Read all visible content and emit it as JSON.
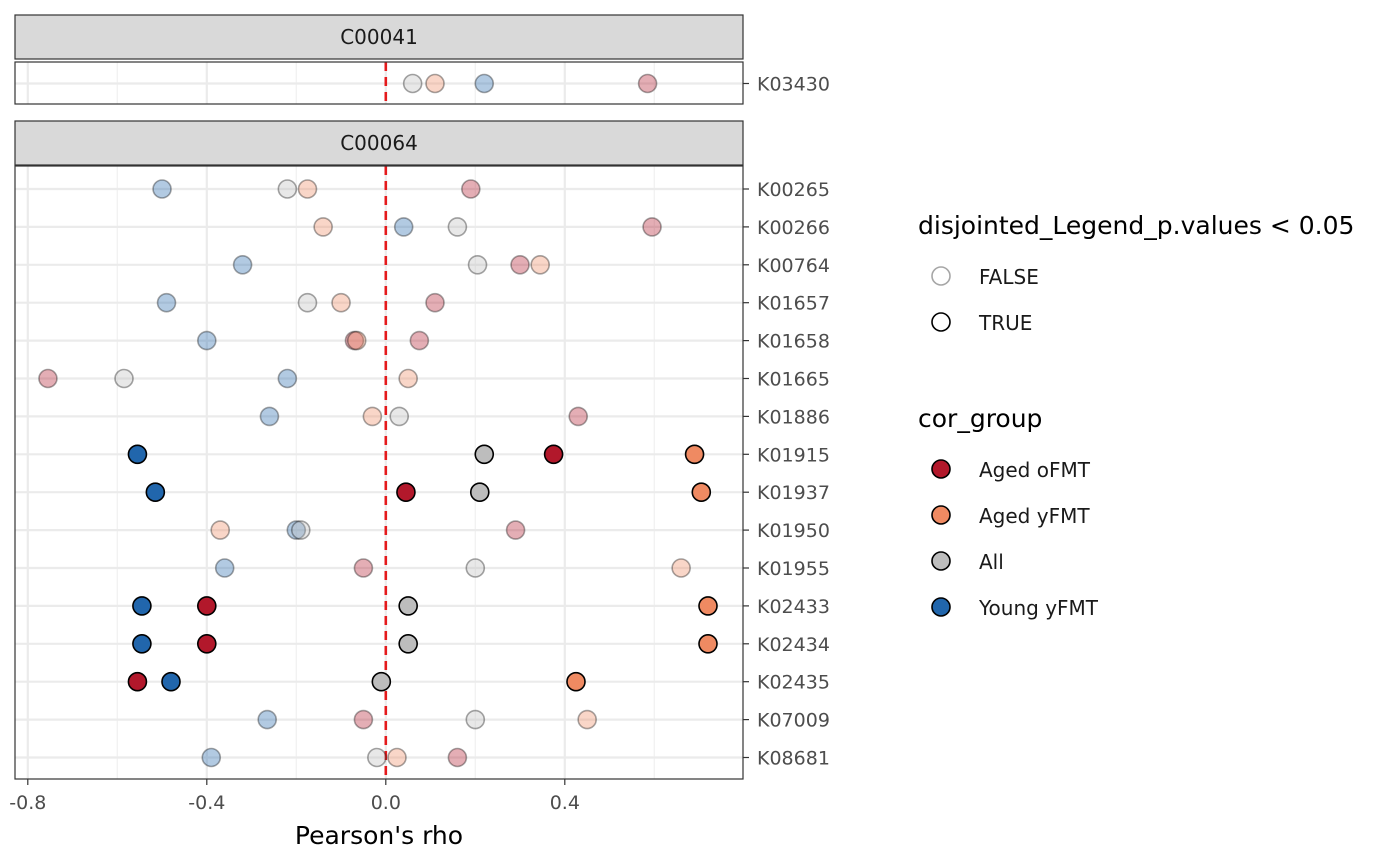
{
  "chart_data": {
    "type": "scatter",
    "xlabel": "Pearson's rho",
    "xlim": [
      -0.825,
      0.8
    ],
    "x_ticks": [
      -0.8,
      -0.4,
      0.0,
      0.4
    ],
    "x_tick_labels": [
      "-0.8",
      "-0.4",
      "0.0",
      "0.4"
    ],
    "reference_line": {
      "x": 0,
      "color": "#e41a1c",
      "style": "dashed"
    },
    "grid": true,
    "legend_position": "right",
    "colors": {
      "Aged oFMT": "#b2182b",
      "Aged yFMT": "#ef8a62",
      "All": "#bdbdbd",
      "Young yFMT": "#2166ac"
    },
    "legends": [
      {
        "title": "disjointed_Legend_p.values < 0.05",
        "entries": [
          {
            "label": "FALSE",
            "value": false
          },
          {
            "label": "TRUE",
            "value": true
          }
        ]
      },
      {
        "title": "cor_group",
        "entries": [
          {
            "label": "Aged oFMT",
            "color": "#b2182b"
          },
          {
            "label": "Aged yFMT",
            "color": "#ef8a62"
          },
          {
            "label": "All",
            "color": "#bdbdbd"
          },
          {
            "label": "Young yFMT",
            "color": "#2166ac"
          }
        ]
      }
    ],
    "panels": [
      {
        "facet": "C00041",
        "rows": [
          "K03430"
        ],
        "points": [
          {
            "row": "K03430",
            "group": "All",
            "x": 0.06,
            "sig": false
          },
          {
            "row": "K03430",
            "group": "Aged yFMT",
            "x": 0.11,
            "sig": false
          },
          {
            "row": "K03430",
            "group": "Young yFMT",
            "x": 0.22,
            "sig": false
          },
          {
            "row": "K03430",
            "group": "Aged oFMT",
            "x": 0.585,
            "sig": false
          }
        ]
      },
      {
        "facet": "C00064",
        "rows": [
          "K00265",
          "K00266",
          "K00764",
          "K01657",
          "K01658",
          "K01665",
          "K01886",
          "K01915",
          "K01937",
          "K01950",
          "K01955",
          "K02433",
          "K02434",
          "K02435",
          "K07009",
          "K08681"
        ],
        "points": [
          {
            "row": "K00265",
            "group": "Young yFMT",
            "x": -0.5,
            "sig": false
          },
          {
            "row": "K00265",
            "group": "All",
            "x": -0.22,
            "sig": false
          },
          {
            "row": "K00265",
            "group": "Aged yFMT",
            "x": -0.175,
            "sig": false
          },
          {
            "row": "K00265",
            "group": "Aged oFMT",
            "x": 0.19,
            "sig": false
          },
          {
            "row": "K00266",
            "group": "Aged yFMT",
            "x": -0.14,
            "sig": false
          },
          {
            "row": "K00266",
            "group": "Young yFMT",
            "x": 0.04,
            "sig": false
          },
          {
            "row": "K00266",
            "group": "All",
            "x": 0.16,
            "sig": false
          },
          {
            "row": "K00266",
            "group": "Aged oFMT",
            "x": 0.595,
            "sig": false
          },
          {
            "row": "K00764",
            "group": "Young yFMT",
            "x": -0.32,
            "sig": false
          },
          {
            "row": "K00764",
            "group": "All",
            "x": 0.205,
            "sig": false
          },
          {
            "row": "K00764",
            "group": "Aged oFMT",
            "x": 0.3,
            "sig": false
          },
          {
            "row": "K00764",
            "group": "Aged yFMT",
            "x": 0.345,
            "sig": false
          },
          {
            "row": "K01657",
            "group": "Young yFMT",
            "x": -0.49,
            "sig": false
          },
          {
            "row": "K01657",
            "group": "All",
            "x": -0.175,
            "sig": false
          },
          {
            "row": "K01657",
            "group": "Aged yFMT",
            "x": -0.1,
            "sig": false
          },
          {
            "row": "K01657",
            "group": "Aged oFMT",
            "x": 0.11,
            "sig": false
          },
          {
            "row": "K01658",
            "group": "Young yFMT",
            "x": -0.4,
            "sig": false
          },
          {
            "row": "K01658",
            "group": "Aged oFMT",
            "x": -0.07,
            "sig": false
          },
          {
            "row": "K01658",
            "group": "Aged yFMT",
            "x": -0.065,
            "sig": false
          },
          {
            "row": "K01658",
            "group": "Aged oFMT",
            "x": 0.075,
            "sig": false
          },
          {
            "row": "K01665",
            "group": "Aged oFMT",
            "x": -0.755,
            "sig": false
          },
          {
            "row": "K01665",
            "group": "All",
            "x": -0.585,
            "sig": false
          },
          {
            "row": "K01665",
            "group": "Young yFMT",
            "x": -0.22,
            "sig": false
          },
          {
            "row": "K01665",
            "group": "Aged yFMT",
            "x": 0.05,
            "sig": false
          },
          {
            "row": "K01886",
            "group": "Young yFMT",
            "x": -0.26,
            "sig": false
          },
          {
            "row": "K01886",
            "group": "Aged yFMT",
            "x": -0.03,
            "sig": false
          },
          {
            "row": "K01886",
            "group": "All",
            "x": 0.03,
            "sig": false
          },
          {
            "row": "K01886",
            "group": "Aged oFMT",
            "x": 0.43,
            "sig": false
          },
          {
            "row": "K01915",
            "group": "Young yFMT",
            "x": -0.555,
            "sig": true
          },
          {
            "row": "K01915",
            "group": "All",
            "x": 0.22,
            "sig": true
          },
          {
            "row": "K01915",
            "group": "Aged oFMT",
            "x": 0.375,
            "sig": true
          },
          {
            "row": "K01915",
            "group": "Aged yFMT",
            "x": 0.69,
            "sig": true
          },
          {
            "row": "K01937",
            "group": "Young yFMT",
            "x": -0.515,
            "sig": true
          },
          {
            "row": "K01937",
            "group": "Aged oFMT",
            "x": 0.045,
            "sig": true
          },
          {
            "row": "K01937",
            "group": "All",
            "x": 0.21,
            "sig": true
          },
          {
            "row": "K01937",
            "group": "Aged yFMT",
            "x": 0.705,
            "sig": true
          },
          {
            "row": "K01950",
            "group": "Aged yFMT",
            "x": -0.37,
            "sig": false
          },
          {
            "row": "K01950",
            "group": "Young yFMT",
            "x": -0.2,
            "sig": false
          },
          {
            "row": "K01950",
            "group": "All",
            "x": -0.19,
            "sig": false
          },
          {
            "row": "K01950",
            "group": "Aged oFMT",
            "x": 0.29,
            "sig": false
          },
          {
            "row": "K01955",
            "group": "Young yFMT",
            "x": -0.36,
            "sig": false
          },
          {
            "row": "K01955",
            "group": "Aged oFMT",
            "x": -0.05,
            "sig": false
          },
          {
            "row": "K01955",
            "group": "All",
            "x": 0.2,
            "sig": false
          },
          {
            "row": "K01955",
            "group": "Aged yFMT",
            "x": 0.66,
            "sig": false
          },
          {
            "row": "K02433",
            "group": "Young yFMT",
            "x": -0.545,
            "sig": true
          },
          {
            "row": "K02433",
            "group": "Aged oFMT",
            "x": -0.4,
            "sig": true
          },
          {
            "row": "K02433",
            "group": "All",
            "x": 0.05,
            "sig": true
          },
          {
            "row": "K02433",
            "group": "Aged yFMT",
            "x": 0.72,
            "sig": true
          },
          {
            "row": "K02434",
            "group": "Young yFMT",
            "x": -0.545,
            "sig": true
          },
          {
            "row": "K02434",
            "group": "Aged oFMT",
            "x": -0.4,
            "sig": true
          },
          {
            "row": "K02434",
            "group": "All",
            "x": 0.05,
            "sig": true
          },
          {
            "row": "K02434",
            "group": "Aged yFMT",
            "x": 0.72,
            "sig": true
          },
          {
            "row": "K02435",
            "group": "Aged oFMT",
            "x": -0.555,
            "sig": true
          },
          {
            "row": "K02435",
            "group": "Young yFMT",
            "x": -0.48,
            "sig": true
          },
          {
            "row": "K02435",
            "group": "All",
            "x": -0.01,
            "sig": true
          },
          {
            "row": "K02435",
            "group": "Aged yFMT",
            "x": 0.425,
            "sig": true
          },
          {
            "row": "K07009",
            "group": "Young yFMT",
            "x": -0.265,
            "sig": false
          },
          {
            "row": "K07009",
            "group": "Aged oFMT",
            "x": -0.05,
            "sig": false
          },
          {
            "row": "K07009",
            "group": "All",
            "x": 0.2,
            "sig": false
          },
          {
            "row": "K07009",
            "group": "Aged yFMT",
            "x": 0.45,
            "sig": false
          },
          {
            "row": "K08681",
            "group": "Young yFMT",
            "x": -0.39,
            "sig": false
          },
          {
            "row": "K08681",
            "group": "All",
            "x": -0.02,
            "sig": false
          },
          {
            "row": "K08681",
            "group": "Aged yFMT",
            "x": 0.025,
            "sig": false
          },
          {
            "row": "K08681",
            "group": "Aged oFMT",
            "x": 0.16,
            "sig": false
          }
        ]
      }
    ]
  }
}
